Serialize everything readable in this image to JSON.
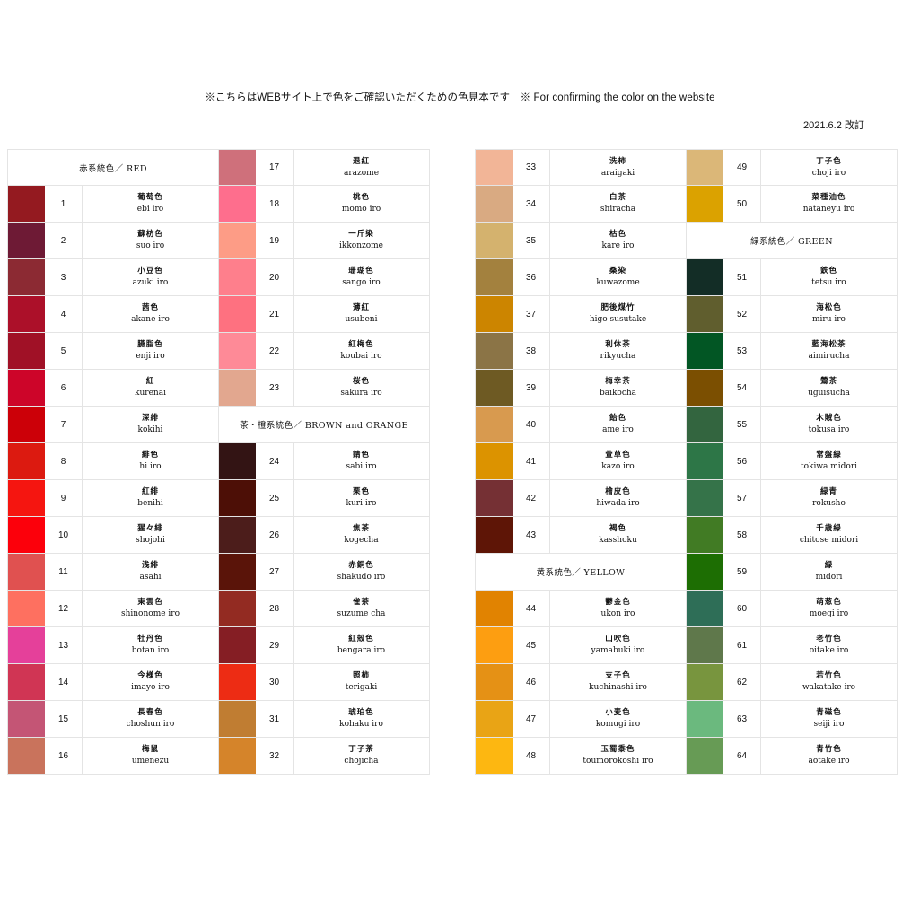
{
  "notice": "※こちらはWEBサイト上で色をご確認いただくための色見本です　※ For confirming the color on the website",
  "revised": "2021.6.2 改訂",
  "columns": [
    [
      {
        "header": "赤系統色／ RED"
      },
      {
        "num": "1",
        "jp": "葡萄色",
        "ro": "ebi iro",
        "color": "#941a20"
      },
      {
        "num": "2",
        "jp": "蘇枋色",
        "ro": "suo iro",
        "color": "#6e1a35"
      },
      {
        "num": "3",
        "jp": "小豆色",
        "ro": "azuki iro",
        "color": "#8c2a33"
      },
      {
        "num": "4",
        "jp": "茜色",
        "ro": "akane iro",
        "color": "#ac1029"
      },
      {
        "num": "5",
        "jp": "臙脂色",
        "ro": "enji iro",
        "color": "#a01126"
      },
      {
        "num": "6",
        "jp": "紅",
        "ro": "kurenai",
        "color": "#cd0529"
      },
      {
        "num": "7",
        "jp": "深緋",
        "ro": "kokihi",
        "color": "#cc0008"
      },
      {
        "num": "8",
        "jp": "緋色",
        "ro": "hi iro",
        "color": "#dc1a10"
      },
      {
        "num": "9",
        "jp": "紅緋",
        "ro": "benihi",
        "color": "#f51510"
      },
      {
        "num": "10",
        "jp": "猩々緋",
        "ro": "shojohi",
        "color": "#fc000b"
      },
      {
        "num": "11",
        "jp": "浅緋",
        "ro": "asahi",
        "color": "#e05150"
      },
      {
        "num": "12",
        "jp": "東雲色",
        "ro": "shinonome iro",
        "color": "#fe7060"
      },
      {
        "num": "13",
        "jp": "牡丹色",
        "ro": "botan iro",
        "color": "#e5409a"
      },
      {
        "num": "14",
        "jp": "今様色",
        "ro": "imayo iro",
        "color": "#d03554"
      },
      {
        "num": "15",
        "jp": "長春色",
        "ro": "choshun iro",
        "color": "#c45575"
      },
      {
        "num": "16",
        "jp": "梅鼠",
        "ro": "umenezu",
        "color": "#c9735c"
      }
    ],
    [
      {
        "num": "17",
        "jp": "退紅",
        "ro": "arazome",
        "color": "#cf707b"
      },
      {
        "num": "18",
        "jp": "桃色",
        "ro": "momo iro",
        "color": "#fe6e8d"
      },
      {
        "num": "19",
        "jp": "一斤染",
        "ro": "ikkonzome",
        "color": "#fd9c86"
      },
      {
        "num": "20",
        "jp": "珊瑚色",
        "ro": "sango iro",
        "color": "#fe7f8c"
      },
      {
        "num": "21",
        "jp": "薄紅",
        "ro": "usubeni",
        "color": "#fe7180"
      },
      {
        "num": "22",
        "jp": "紅梅色",
        "ro": "koubai iro",
        "color": "#fe8a97"
      },
      {
        "num": "23",
        "jp": "桜色",
        "ro": "sakura iro",
        "color": "#e2a78f"
      },
      {
        "header": "茶・橙系統色／ BROWN and ORANGE"
      },
      {
        "num": "24",
        "jp": "錆色",
        "ro": "sabi iro",
        "color": "#331414"
      },
      {
        "num": "25",
        "jp": "栗色",
        "ro": "kuri iro",
        "color": "#4d0f06"
      },
      {
        "num": "26",
        "jp": "焦茶",
        "ro": "kogecha",
        "color": "#4c1d1b"
      },
      {
        "num": "27",
        "jp": "赤銅色",
        "ro": "shakudo iro",
        "color": "#5a1409"
      },
      {
        "num": "28",
        "jp": "雀茶",
        "ro": "suzume cha",
        "color": "#932b22"
      },
      {
        "num": "29",
        "jp": "紅殻色",
        "ro": "bengara iro",
        "color": "#851e24"
      },
      {
        "num": "30",
        "jp": "照柿",
        "ro": "terigaki",
        "color": "#ed2c14"
      },
      {
        "num": "31",
        "jp": "琥珀色",
        "ro": "kohaku iro",
        "color": "#c07d32"
      },
      {
        "num": "32",
        "jp": "丁子茶",
        "ro": "chojicha",
        "color": "#d5842a"
      }
    ],
    [
      {
        "num": "33",
        "jp": "洗柿",
        "ro": "araigaki",
        "color": "#f2b597"
      },
      {
        "num": "34",
        "jp": "白茶",
        "ro": "shiracha",
        "color": "#d9aa82"
      },
      {
        "num": "35",
        "jp": "枯色",
        "ro": "kare iro",
        "color": "#d4b26e"
      },
      {
        "num": "36",
        "jp": "桑染",
        "ro": "kuwazome",
        "color": "#a3813e"
      },
      {
        "num": "37",
        "jp": "肥後煤竹",
        "ro": "higo susutake",
        "color": "#cc8500"
      },
      {
        "num": "38",
        "jp": "利休茶",
        "ro": "rikyucha",
        "color": "#8b7446"
      },
      {
        "num": "39",
        "jp": "梅幸茶",
        "ro": "baikocha",
        "color": "#6e5a23"
      },
      {
        "num": "40",
        "jp": "飴色",
        "ro": "ame iro",
        "color": "#d89a4f"
      },
      {
        "num": "41",
        "jp": "萱草色",
        "ro": "kazo iro",
        "color": "#dc9300"
      },
      {
        "num": "42",
        "jp": "檜皮色",
        "ro": "hiwada iro",
        "color": "#753034"
      },
      {
        "num": "43",
        "jp": "褐色",
        "ro": "kasshoku",
        "color": "#5e1506"
      },
      {
        "header": "黄系統色／ YELLOW"
      },
      {
        "num": "44",
        "jp": "鬱金色",
        "ro": "ukon iro",
        "color": "#e18301"
      },
      {
        "num": "45",
        "jp": "山吹色",
        "ro": "yamabuki iro",
        "color": "#fd9e11"
      },
      {
        "num": "46",
        "jp": "支子色",
        "ro": "kuchinashi iro",
        "color": "#e59115"
      },
      {
        "num": "47",
        "jp": "小麦色",
        "ro": "komugi iro",
        "color": "#e9a415"
      },
      {
        "num": "48",
        "jp": "玉蜀黍色",
        "ro": "toumorokoshi iro",
        "color": "#fdb711"
      }
    ],
    [
      {
        "num": "49",
        "jp": "丁子色",
        "ro": "choji iro",
        "color": "#dbb778"
      },
      {
        "num": "50",
        "jp": "菜種油色",
        "ro": "nataneyu iro",
        "color": "#dba200"
      },
      {
        "header": "緑系統色／ GREEN"
      },
      {
        "num": "51",
        "jp": "鉄色",
        "ro": "tetsu iro",
        "color": "#132d26"
      },
      {
        "num": "52",
        "jp": "海松色",
        "ro": "miru iro",
        "color": "#605e2e"
      },
      {
        "num": "53",
        "jp": "藍海松茶",
        "ro": "aimirucha",
        "color": "#025624"
      },
      {
        "num": "54",
        "jp": "鶯茶",
        "ro": "uguisucha",
        "color": "#7b4f01"
      },
      {
        "num": "55",
        "jp": "木賊色",
        "ro": "tokusa iro",
        "color": "#33653f"
      },
      {
        "num": "56",
        "jp": "常盤緑",
        "ro": "tokiwa midori",
        "color": "#2d7647"
      },
      {
        "num": "57",
        "jp": "緑青",
        "ro": "rokusho",
        "color": "#357349"
      },
      {
        "num": "58",
        "jp": "千歳緑",
        "ro": "chitose midori",
        "color": "#417b24"
      },
      {
        "num": "59",
        "jp": "緑",
        "ro": "midori",
        "color": "#1d6e03"
      },
      {
        "num": "60",
        "jp": "萌葱色",
        "ro": "moegi iro",
        "color": "#2e6e57"
      },
      {
        "num": "61",
        "jp": "老竹色",
        "ro": "oitake iro",
        "color": "#5f784b"
      },
      {
        "num": "62",
        "jp": "若竹色",
        "ro": "wakatake iro",
        "color": "#78953e"
      },
      {
        "num": "63",
        "jp": "青磁色",
        "ro": "seiji iro",
        "color": "#6bb97e"
      },
      {
        "num": "64",
        "jp": "青竹色",
        "ro": "aotake iro",
        "color": "#679b55"
      }
    ]
  ]
}
